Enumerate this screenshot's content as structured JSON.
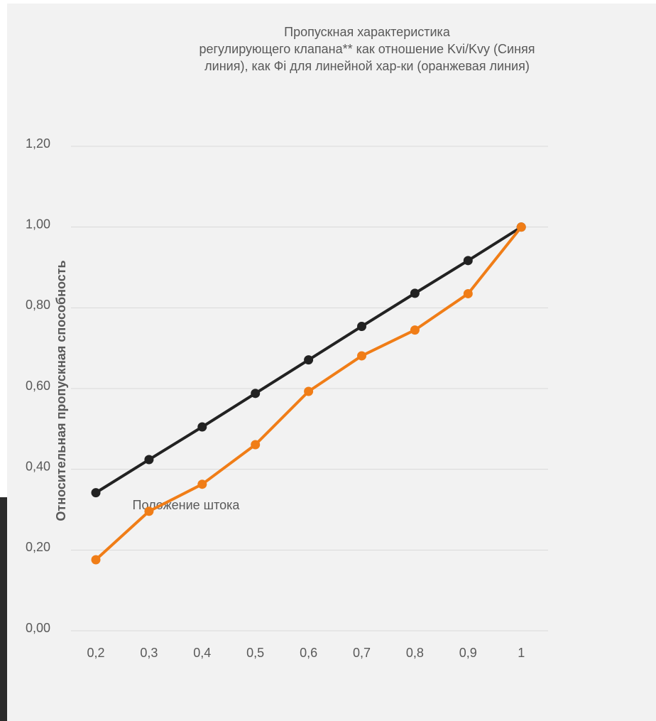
{
  "chart_data": {
    "type": "line",
    "title": [
      "Пропускная характеристика",
      "регулирующего клапана** как отношение Kvi/Kvy (Синяя",
      "линия), как Фi для линейной хар-ки (оранжевая линия)"
    ],
    "x_label": "Положение штока",
    "y_label": "Относительная пропускная способность",
    "categories": [
      "0,2",
      "0,3",
      "0,4",
      "0,5",
      "0,6",
      "0,7",
      "0,8",
      "0,9",
      "1"
    ],
    "series": [
      {
        "color": "#222222",
        "values": [
          0.342,
          0.424,
          0.505,
          0.588,
          0.671,
          0.754,
          0.836,
          0.917,
          1.0
        ]
      },
      {
        "color": "#f07d17",
        "values": [
          0.176,
          0.296,
          0.363,
          0.461,
          0.593,
          0.681,
          0.745,
          0.835,
          1.0
        ]
      }
    ],
    "ylim": [
      0,
      1.2
    ],
    "yticks": [
      {
        "value": 0,
        "label": "0,00"
      },
      {
        "value": 0.2,
        "label": "0,20"
      },
      {
        "value": 0.4,
        "label": "0,40"
      },
      {
        "value": 0.6,
        "label": "0,60"
      },
      {
        "value": 0.8,
        "label": "0,80"
      },
      {
        "value": 1,
        "label": "1,00"
      },
      {
        "value": 1.2,
        "label": "1,20"
      }
    ],
    "grid": true
  }
}
